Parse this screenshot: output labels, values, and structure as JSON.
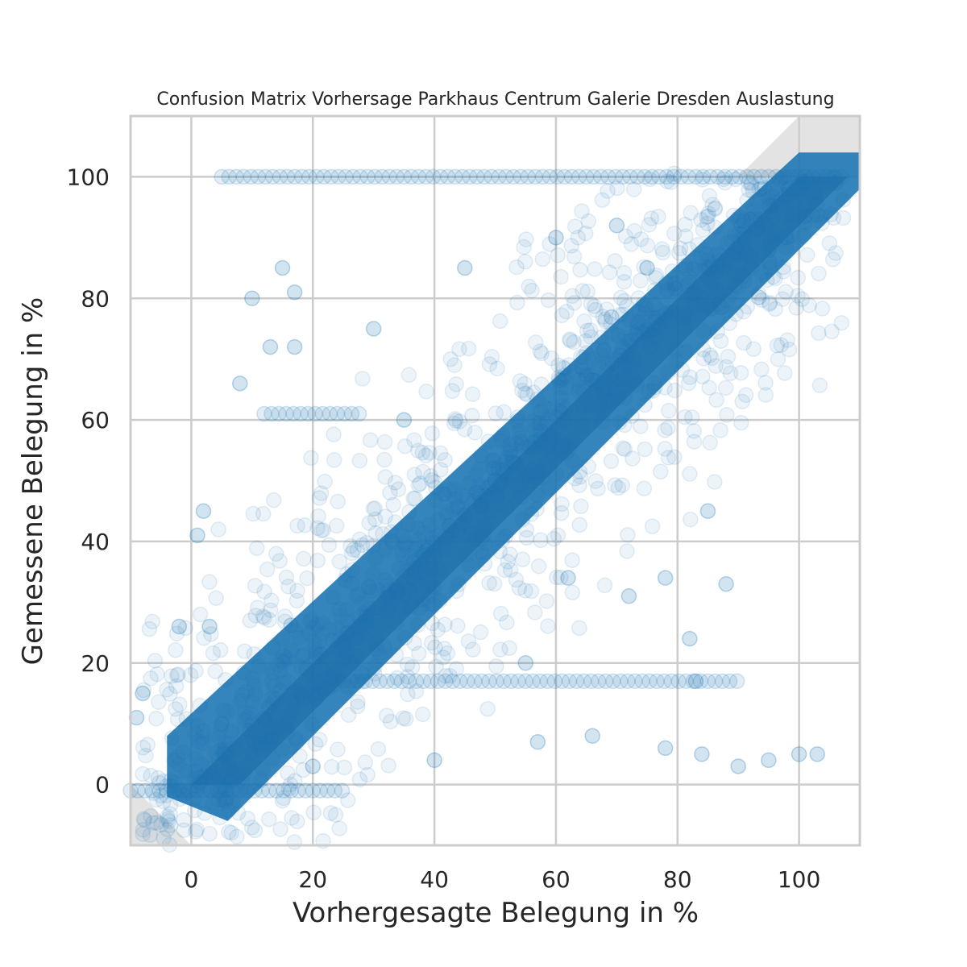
{
  "chart_data": {
    "type": "scatter",
    "title": "Confusion Matrix Vorhersage Parkhaus Centrum Galerie Dresden Auslastung",
    "xlabel": "Vorhergesagte Belegung in %",
    "ylabel": "Gemessene Belegung in %",
    "xlim": [
      -10,
      110
    ],
    "ylim": [
      -10,
      110
    ],
    "xticks": [
      0,
      20,
      40,
      60,
      80,
      100
    ],
    "yticks": [
      0,
      20,
      40,
      60,
      80,
      100
    ],
    "x_tick_labels": [
      "0",
      "20",
      "40",
      "60",
      "80",
      "100"
    ],
    "y_tick_labels": [
      "0",
      "20",
      "40",
      "60",
      "80",
      "100"
    ],
    "grid": true,
    "point_color": "#1f77b4",
    "point_alpha": 0.08,
    "band_color": "#808080",
    "dense_band": {
      "halfwidth": 8
    },
    "shaded_regions": [
      {
        "description": "upper-left triangle above y = x",
        "region": "y > x"
      },
      {
        "description": "lower triangle below y = x",
        "region": "y < x"
      }
    ],
    "series": [
      {
        "values_description": "measured vs predicted occupancy",
        "clusters": [
          {
            "x_range": [
              5,
              108
            ],
            "y": 100
          },
          {
            "x_range": [
              25,
              90
            ],
            "y": 17
          },
          {
            "x_range": [
              12,
              28
            ],
            "y": 61
          },
          {
            "x_range": [
              -10,
              25
            ],
            "y": -1
          }
        ],
        "sample_points": [
          [
            15,
            85
          ],
          [
            17,
            81
          ],
          [
            10,
            80
          ],
          [
            17,
            72
          ],
          [
            13,
            72
          ],
          [
            2,
            45
          ],
          [
            1,
            41
          ],
          [
            85,
            45
          ],
          [
            88,
            33
          ],
          [
            82,
            24
          ],
          [
            83,
            17
          ],
          [
            100,
            5
          ],
          [
            103,
            5
          ],
          [
            95,
            4
          ],
          [
            90,
            3
          ],
          [
            60,
            90
          ],
          [
            70,
            92
          ],
          [
            75,
            85
          ],
          [
            95,
            88
          ],
          [
            98,
            90
          ],
          [
            45,
            85
          ],
          [
            30,
            75
          ],
          [
            8,
            66
          ],
          [
            35,
            60
          ],
          [
            50,
            50
          ],
          [
            62,
            34
          ],
          [
            72,
            31
          ],
          [
            78,
            34
          ],
          [
            66,
            8
          ],
          [
            57,
            7
          ],
          [
            40,
            4
          ],
          [
            20,
            3
          ],
          [
            5,
            10
          ],
          [
            3,
            26
          ],
          [
            -2,
            26
          ],
          [
            -8,
            15
          ],
          [
            -9,
            11
          ],
          [
            78,
            6
          ],
          [
            84,
            5
          ],
          [
            92,
            93
          ],
          [
            106,
            99
          ],
          [
            55,
            20
          ]
        ]
      }
    ]
  }
}
